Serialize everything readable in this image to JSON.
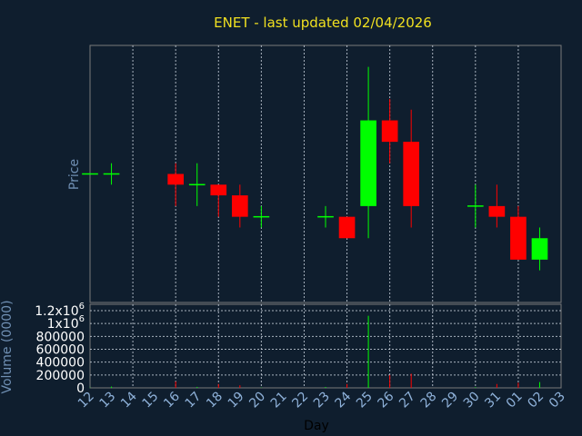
{
  "chart_data": {
    "title": "ENET - last updated 02/04/2026",
    "type": "candlestick",
    "xlabel": "Day",
    "price_ylabel": "Price",
    "volume_ylabel": "Volume (0000)",
    "x_tick_labels": [
      "12",
      "13",
      "14",
      "15",
      "16",
      "17",
      "18",
      "19",
      "20",
      "21",
      "22",
      "23",
      "24",
      "25",
      "26",
      "27",
      "28",
      "29",
      "30",
      "31",
      "01",
      "02",
      "03"
    ],
    "volume_tick_labels": [
      "0",
      "200000",
      "400000",
      "600000",
      "800000",
      "1x10^6",
      "1.2x10^6"
    ],
    "volume_ylim": [
      0,
      1200000
    ],
    "price_ylim": [
      0,
      240
    ],
    "grid": true,
    "colors": {
      "background": "#0f1e2e",
      "up": "#00ff00",
      "down": "#ff0000",
      "grid": "#ffffff",
      "title": "#f0e020"
    },
    "candles": [
      {
        "day": "12",
        "open": 120,
        "high": 120,
        "low": 120,
        "close": 120,
        "volume": 5000
      },
      {
        "day": "13",
        "open": 120,
        "high": 130,
        "low": 110,
        "close": 120,
        "volume": 20000
      },
      {
        "day": "16",
        "open": 120,
        "high": 130,
        "low": 90,
        "close": 110,
        "volume": 100000
      },
      {
        "day": "17",
        "open": 110,
        "high": 130,
        "low": 90,
        "close": 110,
        "volume": 15000
      },
      {
        "day": "18",
        "open": 110,
        "high": 110,
        "low": 80,
        "close": 100,
        "volume": 60000
      },
      {
        "day": "19",
        "open": 100,
        "high": 110,
        "low": 70,
        "close": 80,
        "volume": 40000
      },
      {
        "day": "20",
        "open": 80,
        "high": 90,
        "low": 70,
        "close": 80,
        "volume": 5000
      },
      {
        "day": "23",
        "open": 80,
        "high": 90,
        "low": 70,
        "close": 80,
        "volume": 15000
      },
      {
        "day": "24",
        "open": 80,
        "high": 80,
        "low": 60,
        "close": 60,
        "volume": 60000
      },
      {
        "day": "25",
        "open": 90,
        "high": 220,
        "low": 60,
        "close": 170,
        "volume": 1120000
      },
      {
        "day": "26",
        "open": 170,
        "high": 190,
        "low": 130,
        "close": 150,
        "volume": 200000
      },
      {
        "day": "27",
        "open": 150,
        "high": 180,
        "low": 70,
        "close": 90,
        "volume": 220000
      },
      {
        "day": "30",
        "open": 90,
        "high": 110,
        "low": 70,
        "close": 90,
        "volume": 10000
      },
      {
        "day": "31",
        "open": 90,
        "high": 110,
        "low": 70,
        "close": 80,
        "volume": 60000
      },
      {
        "day": "01",
        "open": 80,
        "high": 90,
        "low": 40,
        "close": 40,
        "volume": 80000
      },
      {
        "day": "02",
        "open": 40,
        "high": 70,
        "low": 30,
        "close": 60,
        "volume": 90000
      }
    ]
  }
}
